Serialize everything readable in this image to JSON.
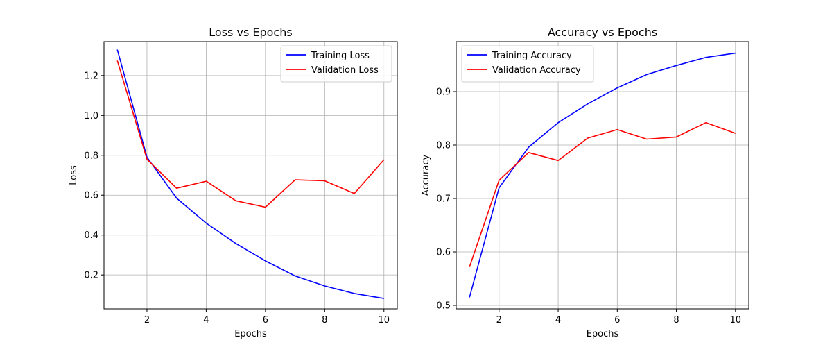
{
  "chart_data": [
    {
      "type": "line",
      "title": "Loss vs Epochs",
      "xlabel": "Epochs",
      "ylabel": "Loss",
      "xlim": [
        0.55,
        10.45
      ],
      "ylim": [
        0.03,
        1.37
      ],
      "xticks": [
        2,
        4,
        6,
        8,
        10
      ],
      "yticks": [
        0.2,
        0.4,
        0.6,
        0.8,
        1.0,
        1.2
      ],
      "ytick_labels": [
        "0.2",
        "0.4",
        "0.6",
        "0.8",
        "1.0",
        "1.2"
      ],
      "grid": true,
      "legend_position": "top-right",
      "x": [
        1,
        2,
        3,
        4,
        5,
        6,
        7,
        8,
        9,
        10
      ],
      "series": [
        {
          "name": "Training Loss",
          "color": "#0000ff",
          "values": [
            1.33,
            0.79,
            0.585,
            0.46,
            0.358,
            0.27,
            0.195,
            0.145,
            0.107,
            0.082
          ]
        },
        {
          "name": "Validation Loss",
          "color": "#ff0000",
          "values": [
            1.275,
            0.78,
            0.635,
            0.67,
            0.572,
            0.54,
            0.677,
            0.672,
            0.608,
            0.778
          ]
        }
      ]
    },
    {
      "type": "line",
      "title": "Accuracy vs Epochs",
      "xlabel": "Epochs",
      "ylabel": "Accuracy",
      "xlim": [
        0.55,
        10.45
      ],
      "ylim": [
        0.4935,
        0.9935
      ],
      "xticks": [
        2,
        4,
        6,
        8,
        10
      ],
      "yticks": [
        0.5,
        0.6,
        0.7,
        0.8,
        0.9
      ],
      "ytick_labels": [
        "0.5",
        "0.6",
        "0.7",
        "0.8",
        "0.9"
      ],
      "grid": true,
      "legend_position": "top-left",
      "x": [
        1,
        2,
        3,
        4,
        5,
        6,
        7,
        8,
        9,
        10
      ],
      "series": [
        {
          "name": "Training Accuracy",
          "color": "#0000ff",
          "values": [
            0.515,
            0.72,
            0.796,
            0.842,
            0.877,
            0.907,
            0.932,
            0.949,
            0.964,
            0.972
          ]
        },
        {
          "name": "Validation Accuracy",
          "color": "#ff0000",
          "values": [
            0.572,
            0.734,
            0.786,
            0.771,
            0.813,
            0.829,
            0.811,
            0.815,
            0.842,
            0.822
          ]
        }
      ]
    }
  ]
}
